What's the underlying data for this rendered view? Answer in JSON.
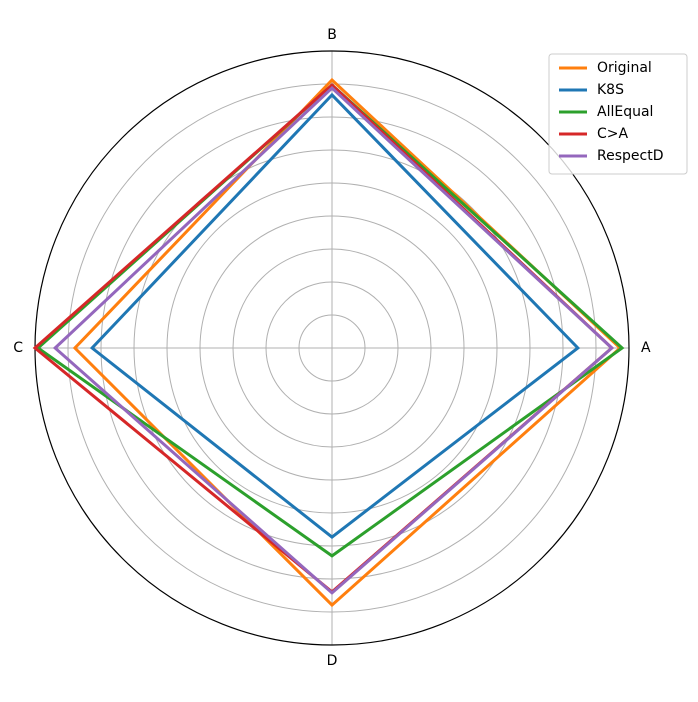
{
  "chart_data": {
    "type": "radar",
    "categories": [
      "A",
      "B",
      "C",
      "D"
    ],
    "series": [
      {
        "name": "Original",
        "color": "#ff7f0e",
        "values": [
          8.73,
          8.12,
          7.79,
          7.79
        ]
      },
      {
        "name": "K8S",
        "color": "#1f77b4",
        "values": [
          7.45,
          7.67,
          7.27,
          5.73
        ]
      },
      {
        "name": "AllEqual",
        "color": "#2ca02c",
        "values": [
          8.79,
          7.97,
          8.91,
          6.3
        ]
      },
      {
        "name": "C>A",
        "color": "#d62728",
        "values": [
          8.48,
          7.97,
          9.0,
          7.39
        ]
      },
      {
        "name": "RespectD",
        "color": "#9467bd",
        "values": [
          8.48,
          7.88,
          8.39,
          7.42
        ]
      }
    ],
    "ylim": [
      0,
      9
    ],
    "yticks": [
      1,
      2,
      3,
      4,
      5,
      6,
      7,
      8
    ],
    "grid": true,
    "legend": "upper right"
  }
}
